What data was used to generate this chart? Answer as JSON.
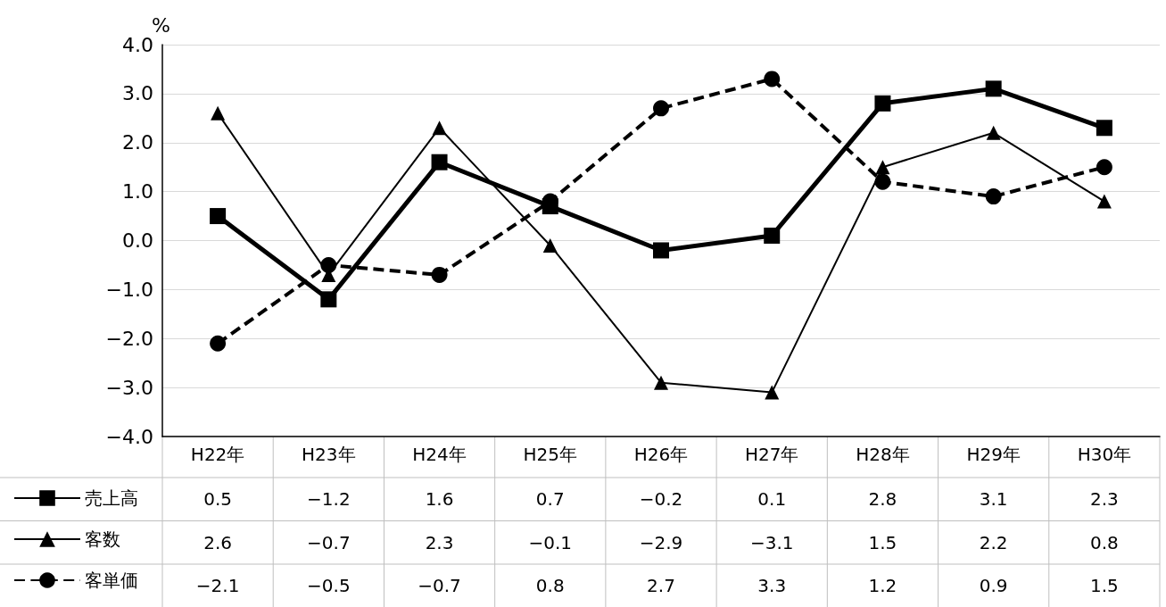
{
  "chart_data": {
    "type": "line",
    "ylabel": "%",
    "categories": [
      "H22年",
      "H23年",
      "H24年",
      "H25年",
      "H26年",
      "H27年",
      "H28年",
      "H29年",
      "H30年"
    ],
    "series": [
      {
        "name": "売上高",
        "color": "#000000",
        "marker": "square",
        "line_style": "solid",
        "values": [
          0.5,
          -1.2,
          1.6,
          0.7,
          -0.2,
          0.1,
          2.8,
          3.1,
          2.3
        ],
        "value_labels": [
          "0.5",
          "−1.2",
          "1.6",
          "0.7",
          "−0.2",
          "0.1",
          "2.8",
          "3.1",
          "2.3"
        ]
      },
      {
        "name": "客数",
        "color": "#000000",
        "marker": "triangle",
        "line_style": "solid",
        "values": [
          2.6,
          -0.7,
          2.3,
          -0.1,
          -2.9,
          -3.1,
          1.5,
          2.2,
          0.8
        ],
        "value_labels": [
          "2.6",
          "−0.7",
          "2.3",
          "−0.1",
          "−2.9",
          "−3.1",
          "1.5",
          "2.2",
          "0.8"
        ]
      },
      {
        "name": "客単価",
        "color": "#000000",
        "marker": "circle",
        "line_style": "dashed",
        "values": [
          -2.1,
          -0.5,
          -0.7,
          0.8,
          2.7,
          3.3,
          1.2,
          0.9,
          1.5
        ],
        "value_labels": [
          "−2.1",
          "−0.5",
          "−0.7",
          "0.8",
          "2.7",
          "3.3",
          "1.2",
          "0.9",
          "1.5"
        ]
      }
    ],
    "ylim": [
      -4,
      4
    ],
    "yticks": [
      {
        "value": -4,
        "label": "−4.0"
      },
      {
        "value": -3,
        "label": "−3.0"
      },
      {
        "value": -2,
        "label": "−2.0"
      },
      {
        "value": -1,
        "label": "−1.0"
      },
      {
        "value": 0,
        "label": "0.0"
      },
      {
        "value": 1,
        "label": "1.0"
      },
      {
        "value": 2,
        "label": "2.0"
      },
      {
        "value": 3,
        "label": "3.0"
      },
      {
        "value": 4,
        "label": "4.0"
      }
    ],
    "grid": "y",
    "legend": "bottom left"
  }
}
